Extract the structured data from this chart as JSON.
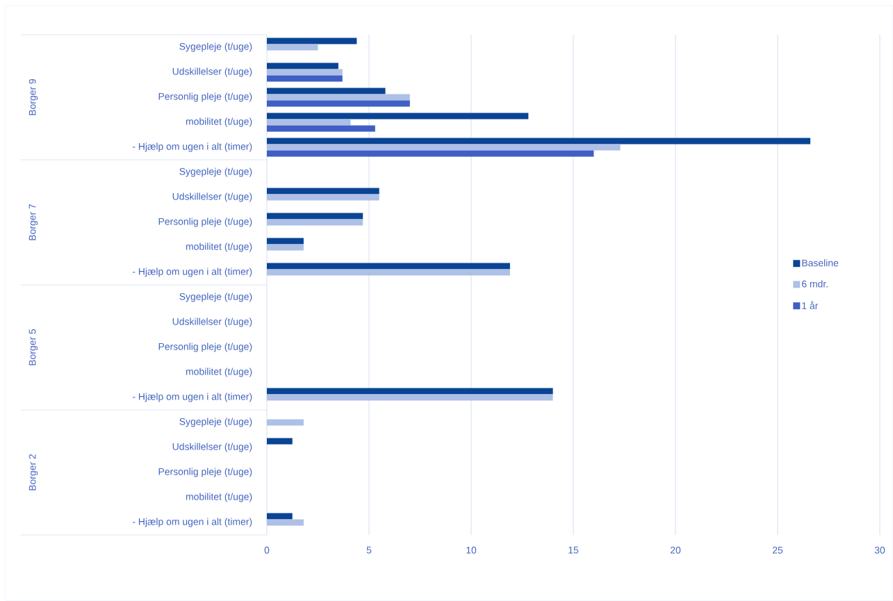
{
  "chart_data": {
    "type": "bar",
    "orientation": "horizontal",
    "categories": [
      "Sygepleje (t/uge)",
      "Udskillelser (t/uge)",
      "Personlig pleje (t/uge)",
      "mobilitet (t/uge)",
      "- Hjælp om ugen i alt (timer)",
      "Sygepleje (t/uge)",
      "Udskillelser (t/uge)",
      "Personlig pleje (t/uge)",
      "mobilitet (t/uge)",
      "- Hjælp om ugen i alt (timer)",
      "Sygepleje (t/uge)",
      "Udskillelser (t/uge)",
      "Personlig pleje (t/uge)",
      "mobilitet (t/uge)",
      "- Hjælp om ugen i alt (timer)",
      "Sygepleje (t/uge)",
      "Udskillelser (t/uge)",
      "Personlig pleje (t/uge)",
      "mobilitet (t/uge)",
      "- Hjælp om ugen i alt (timer)"
    ],
    "series": [
      {
        "name": "Baseline",
        "color": "#0a4494",
        "values": [
          4.4,
          3.5,
          5.8,
          12.8,
          26.6,
          null,
          5.5,
          4.7,
          1.8,
          11.9,
          null,
          null,
          null,
          null,
          14.0,
          null,
          1.25,
          null,
          null,
          1.25
        ]
      },
      {
        "name": "6 mdr.",
        "color": "#aec0e6",
        "values": [
          2.5,
          3.7,
          7.0,
          4.1,
          17.3,
          null,
          5.5,
          4.7,
          1.8,
          11.9,
          null,
          null,
          null,
          null,
          14.0,
          1.8,
          null,
          null,
          null,
          1.8
        ]
      },
      {
        "name": "1 år",
        "color": "#3f5fc4",
        "values": [
          null,
          3.7,
          7.0,
          5.3,
          16.0,
          null,
          null,
          null,
          null,
          null,
          null,
          null,
          null,
          null,
          null,
          null,
          null,
          null,
          null,
          null
        ]
      }
    ],
    "annotations": [
      "Borger 9",
      "Borger 7",
      "Borger 5",
      "Borger 2"
    ],
    "xlim": [
      0,
      30
    ],
    "xticks": [
      0,
      5,
      10,
      15,
      20,
      25,
      30
    ],
    "grid": "x",
    "legend": "right"
  }
}
